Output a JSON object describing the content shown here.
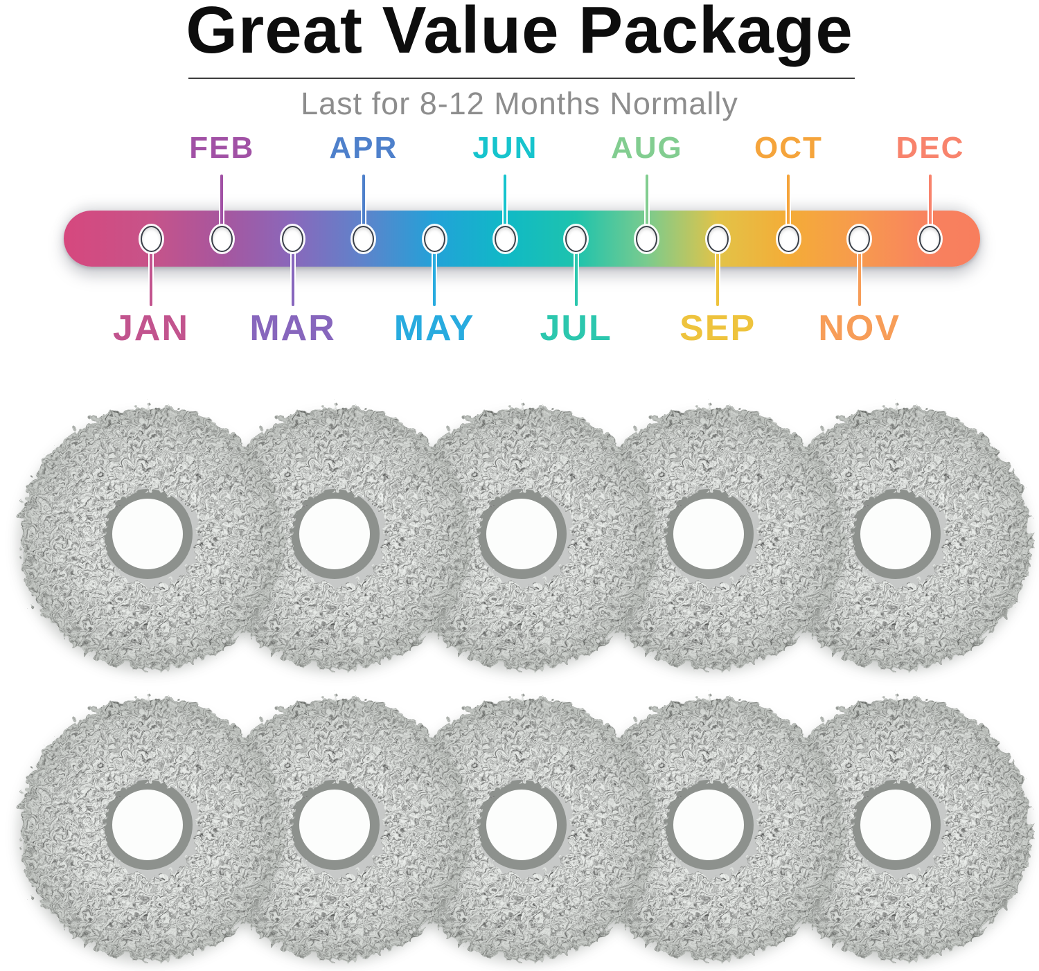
{
  "header": {
    "title": "Great Value Package",
    "subtitle": "Last for 8-12 Months Normally"
  },
  "timeline": {
    "months": [
      {
        "label": "JAN",
        "color": "#c2548e"
      },
      {
        "label": "FEB",
        "color": "#a151a5"
      },
      {
        "label": "MAR",
        "color": "#8766bd"
      },
      {
        "label": "APR",
        "color": "#4e80cb"
      },
      {
        "label": "MAY",
        "color": "#28abdf"
      },
      {
        "label": "JUN",
        "color": "#16c4cd"
      },
      {
        "label": "JUL",
        "color": "#2cc7ae"
      },
      {
        "label": "AUG",
        "color": "#82cd90"
      },
      {
        "label": "SEP",
        "color": "#eec33d"
      },
      {
        "label": "OCT",
        "color": "#f5a43b"
      },
      {
        "label": "NOV",
        "color": "#f79d58"
      },
      {
        "label": "DEC",
        "color": "#f8836c"
      }
    ],
    "bar_gradient": [
      {
        "color": "#d6487e",
        "pct": 0
      },
      {
        "color": "#c75389",
        "pct": 9.5
      },
      {
        "color": "#a7569e",
        "pct": 17.3
      },
      {
        "color": "#8968bb",
        "pct": 25.0
      },
      {
        "color": "#5e83cb",
        "pct": 32.7
      },
      {
        "color": "#22a2d8",
        "pct": 40.5
      },
      {
        "color": "#10b9c6",
        "pct": 48.2
      },
      {
        "color": "#1ec3ad",
        "pct": 55.9
      },
      {
        "color": "#7acb8e",
        "pct": 63.6
      },
      {
        "color": "#e2c348",
        "pct": 71.4
      },
      {
        "color": "#f4ac37",
        "pct": 79.1
      },
      {
        "color": "#f79a4e",
        "pct": 86.8
      },
      {
        "color": "#f8815f",
        "pct": 94.6
      },
      {
        "color": "#f87e5d",
        "pct": 100
      }
    ],
    "hole_fill": "#ffffff",
    "hole_outline": "#3a4049"
  },
  "product": {
    "item": "round microfiber mop pad",
    "count": 10,
    "rows": 2,
    "per_row": 5,
    "pad_color": "#c6cbc7",
    "pad_texture_color": "#eef1ee",
    "ring_color": "#8d918d",
    "hole_color": "#fcfdfc",
    "shadow_color": "#6e7370"
  }
}
